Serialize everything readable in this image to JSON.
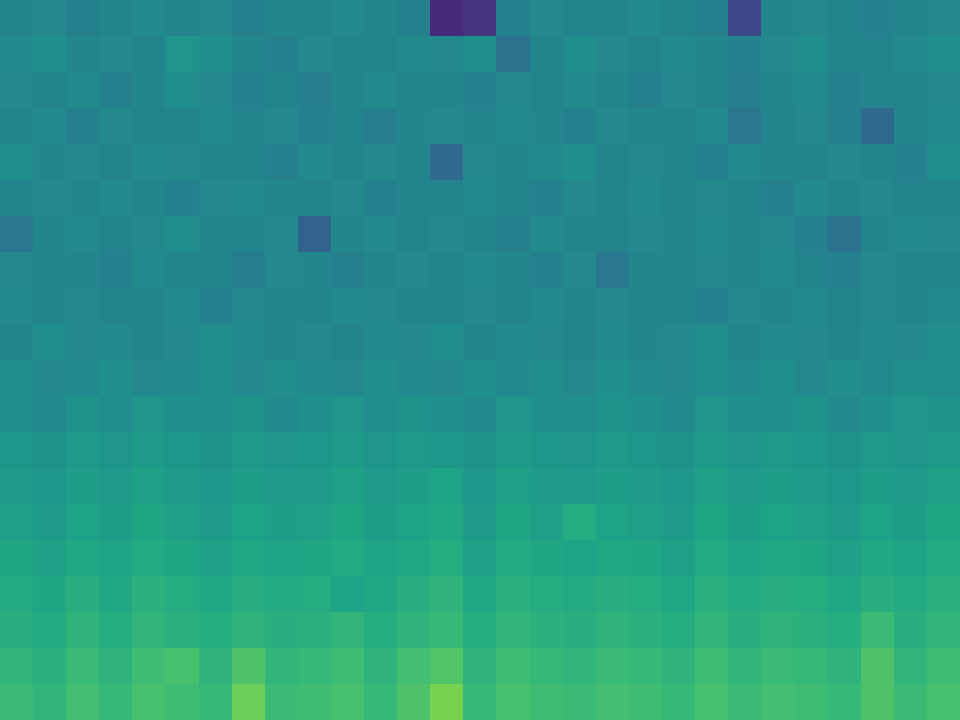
{
  "chart_data": {
    "type": "heatmap",
    "color": "viridis",
    "color_range": [
      0,
      1
    ],
    "tick_labels": false,
    "cells": [
      [
        0.45,
        0.47,
        0.44,
        0.46,
        0.48,
        0.45,
        0.47,
        0.44,
        0.46,
        0.45,
        0.48,
        0.46,
        0.44,
        0.12,
        0.15,
        0.44,
        0.47,
        0.45,
        0.46,
        0.48,
        0.45,
        0.44,
        0.22,
        0.46,
        0.47,
        0.45,
        0.44,
        0.46,
        0.47
      ],
      [
        0.48,
        0.5,
        0.46,
        0.47,
        0.45,
        0.52,
        0.49,
        0.46,
        0.44,
        0.47,
        0.46,
        0.45,
        0.48,
        0.47,
        0.5,
        0.38,
        0.46,
        0.49,
        0.47,
        0.45,
        0.48,
        0.46,
        0.44,
        0.47,
        0.49,
        0.46,
        0.45,
        0.48,
        0.5
      ],
      [
        0.47,
        0.45,
        0.48,
        0.44,
        0.46,
        0.49,
        0.47,
        0.44,
        0.45,
        0.43,
        0.46,
        0.48,
        0.45,
        0.46,
        0.44,
        0.47,
        0.45,
        0.48,
        0.46,
        0.44,
        0.47,
        0.45,
        0.43,
        0.46,
        0.48,
        0.44,
        0.46,
        0.45,
        0.47
      ],
      [
        0.46,
        0.48,
        0.44,
        0.47,
        0.45,
        0.46,
        0.48,
        0.45,
        0.47,
        0.44,
        0.45,
        0.43,
        0.46,
        0.47,
        0.45,
        0.48,
        0.46,
        0.44,
        0.47,
        0.46,
        0.45,
        0.48,
        0.4,
        0.45,
        0.47,
        0.44,
        0.34,
        0.46,
        0.48
      ],
      [
        0.49,
        0.46,
        0.47,
        0.45,
        0.48,
        0.47,
        0.45,
        0.46,
        0.44,
        0.48,
        0.46,
        0.47,
        0.45,
        0.35,
        0.47,
        0.46,
        0.48,
        0.49,
        0.45,
        0.47,
        0.46,
        0.44,
        0.48,
        0.46,
        0.45,
        0.47,
        0.46,
        0.44,
        0.49
      ],
      [
        0.45,
        0.47,
        0.46,
        0.48,
        0.46,
        0.44,
        0.47,
        0.48,
        0.46,
        0.45,
        0.47,
        0.44,
        0.46,
        0.45,
        0.48,
        0.46,
        0.44,
        0.47,
        0.46,
        0.48,
        0.45,
        0.47,
        0.46,
        0.44,
        0.48,
        0.46,
        0.47,
        0.45,
        0.46
      ],
      [
        0.4,
        0.46,
        0.48,
        0.45,
        0.47,
        0.49,
        0.46,
        0.45,
        0.47,
        0.32,
        0.46,
        0.48,
        0.45,
        0.47,
        0.46,
        0.44,
        0.48,
        0.46,
        0.45,
        0.47,
        0.46,
        0.48,
        0.45,
        0.47,
        0.44,
        0.38,
        0.46,
        0.48,
        0.47
      ],
      [
        0.47,
        0.45,
        0.46,
        0.44,
        0.48,
        0.46,
        0.45,
        0.43,
        0.47,
        0.46,
        0.44,
        0.46,
        0.47,
        0.45,
        0.48,
        0.46,
        0.44,
        0.47,
        0.4,
        0.46,
        0.45,
        0.47,
        0.46,
        0.48,
        0.45,
        0.44,
        0.47,
        0.46,
        0.45
      ],
      [
        0.48,
        0.46,
        0.47,
        0.45,
        0.46,
        0.48,
        0.44,
        0.47,
        0.45,
        0.46,
        0.48,
        0.47,
        0.45,
        0.46,
        0.47,
        0.45,
        0.48,
        0.46,
        0.47,
        0.45,
        0.46,
        0.44,
        0.47,
        0.46,
        0.48,
        0.45,
        0.47,
        0.46,
        0.48
      ],
      [
        0.46,
        0.49,
        0.47,
        0.48,
        0.46,
        0.47,
        0.49,
        0.48,
        0.46,
        0.47,
        0.45,
        0.48,
        0.47,
        0.49,
        0.46,
        0.48,
        0.47,
        0.45,
        0.48,
        0.46,
        0.47,
        0.49,
        0.46,
        0.48,
        0.47,
        0.46,
        0.48,
        0.47,
        0.49
      ],
      [
        0.49,
        0.47,
        0.48,
        0.5,
        0.47,
        0.48,
        0.5,
        0.47,
        0.49,
        0.48,
        0.47,
        0.49,
        0.48,
        0.47,
        0.5,
        0.48,
        0.49,
        0.47,
        0.5,
        0.48,
        0.47,
        0.49,
        0.48,
        0.5,
        0.47,
        0.49,
        0.48,
        0.5,
        0.49
      ],
      [
        0.5,
        0.48,
        0.51,
        0.49,
        0.52,
        0.5,
        0.49,
        0.51,
        0.48,
        0.5,
        0.52,
        0.49,
        0.51,
        0.5,
        0.48,
        0.52,
        0.5,
        0.49,
        0.51,
        0.5,
        0.48,
        0.52,
        0.5,
        0.49,
        0.51,
        0.48,
        0.5,
        0.52,
        0.51
      ],
      [
        0.53,
        0.51,
        0.54,
        0.52,
        0.55,
        0.53,
        0.51,
        0.54,
        0.52,
        0.53,
        0.55,
        0.52,
        0.54,
        0.53,
        0.51,
        0.55,
        0.53,
        0.52,
        0.54,
        0.53,
        0.51,
        0.55,
        0.52,
        0.54,
        0.53,
        0.51,
        0.54,
        0.52,
        0.55
      ],
      [
        0.55,
        0.53,
        0.56,
        0.54,
        0.57,
        0.55,
        0.53,
        0.56,
        0.54,
        0.55,
        0.57,
        0.54,
        0.56,
        0.58,
        0.53,
        0.57,
        0.55,
        0.54,
        0.56,
        0.55,
        0.53,
        0.57,
        0.54,
        0.56,
        0.55,
        0.53,
        0.56,
        0.54,
        0.57
      ],
      [
        0.57,
        0.55,
        0.58,
        0.56,
        0.59,
        0.57,
        0.55,
        0.58,
        0.56,
        0.57,
        0.59,
        0.56,
        0.58,
        0.6,
        0.55,
        0.59,
        0.57,
        0.62,
        0.58,
        0.57,
        0.55,
        0.59,
        0.56,
        0.58,
        0.57,
        0.55,
        0.58,
        0.56,
        0.59
      ],
      [
        0.59,
        0.57,
        0.6,
        0.58,
        0.61,
        0.59,
        0.57,
        0.6,
        0.58,
        0.59,
        0.61,
        0.58,
        0.6,
        0.62,
        0.57,
        0.61,
        0.59,
        0.58,
        0.6,
        0.59,
        0.57,
        0.61,
        0.58,
        0.6,
        0.59,
        0.57,
        0.6,
        0.58,
        0.61
      ],
      [
        0.61,
        0.59,
        0.63,
        0.6,
        0.64,
        0.62,
        0.6,
        0.63,
        0.61,
        0.62,
        0.58,
        0.6,
        0.63,
        0.65,
        0.6,
        0.64,
        0.62,
        0.61,
        0.63,
        0.62,
        0.6,
        0.64,
        0.61,
        0.63,
        0.62,
        0.6,
        0.63,
        0.61,
        0.64
      ],
      [
        0.63,
        0.61,
        0.65,
        0.62,
        0.66,
        0.64,
        0.62,
        0.65,
        0.63,
        0.64,
        0.66,
        0.62,
        0.65,
        0.67,
        0.62,
        0.66,
        0.64,
        0.63,
        0.65,
        0.64,
        0.62,
        0.66,
        0.63,
        0.65,
        0.64,
        0.62,
        0.68,
        0.63,
        0.66
      ],
      [
        0.66,
        0.64,
        0.68,
        0.65,
        0.69,
        0.71,
        0.65,
        0.72,
        0.66,
        0.67,
        0.69,
        0.65,
        0.7,
        0.73,
        0.65,
        0.69,
        0.67,
        0.66,
        0.68,
        0.67,
        0.65,
        0.69,
        0.66,
        0.68,
        0.67,
        0.65,
        0.72,
        0.66,
        0.69
      ],
      [
        0.68,
        0.66,
        0.7,
        0.67,
        0.71,
        0.69,
        0.67,
        0.78,
        0.68,
        0.69,
        0.71,
        0.67,
        0.72,
        0.8,
        0.67,
        0.71,
        0.69,
        0.68,
        0.7,
        0.69,
        0.67,
        0.71,
        0.68,
        0.7,
        0.69,
        0.67,
        0.72,
        0.68,
        0.71
      ]
    ]
  }
}
